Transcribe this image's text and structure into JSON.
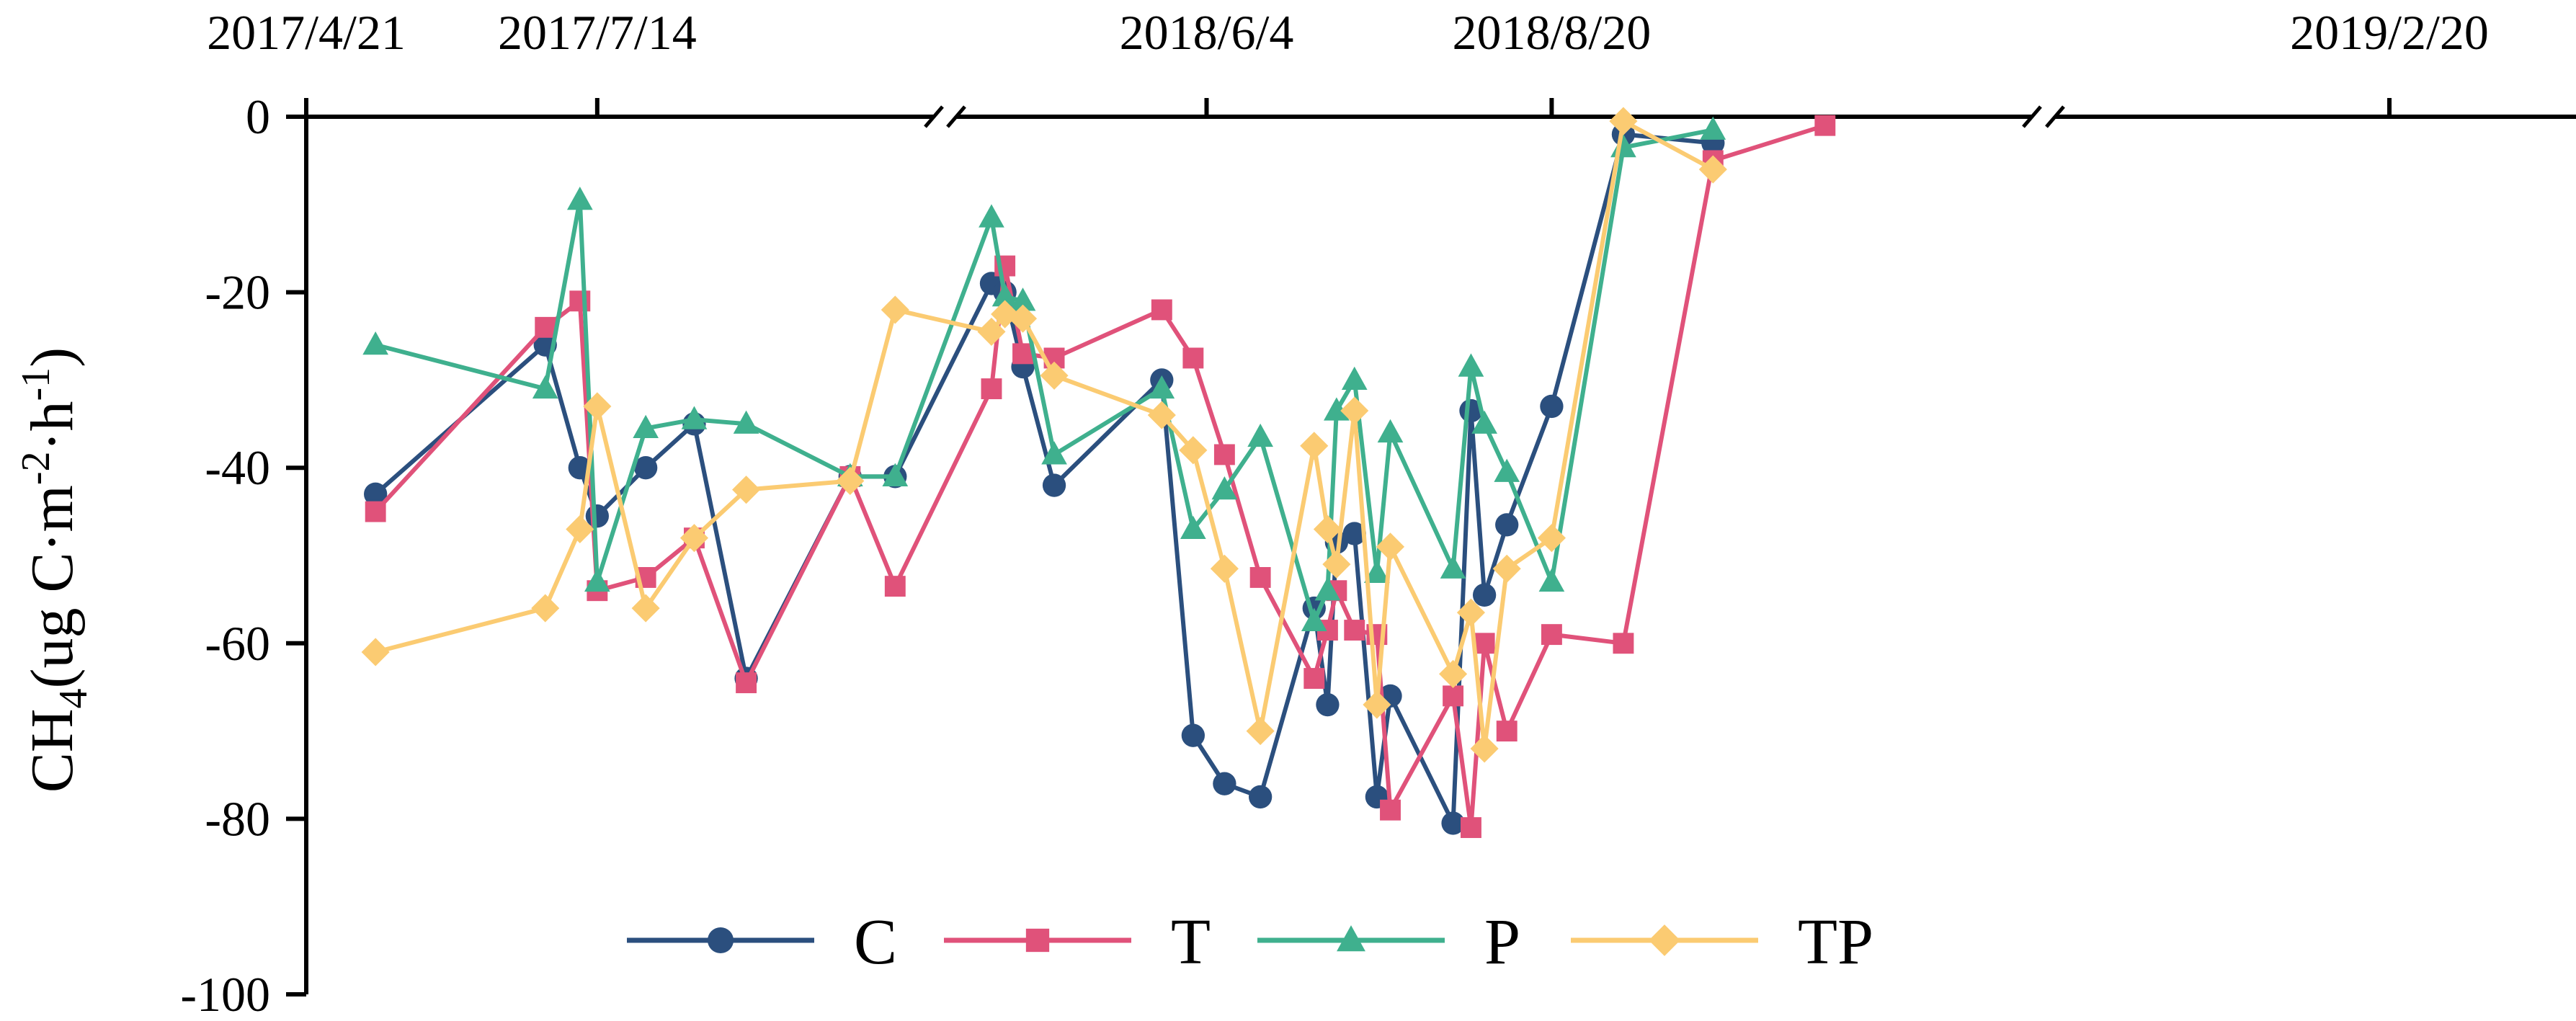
{
  "chart_data": {
    "type": "line",
    "ylabel": {
      "main": "CH",
      "sub": "4",
      "rest": "(ug C·m",
      "sup1": "-2",
      "mid": "·h",
      "sup2": "-1",
      "close": ")"
    },
    "ylim": [
      -100,
      0
    ],
    "yticks": [
      0,
      -20,
      -40,
      -60,
      -80,
      -100
    ],
    "ytick_labels": [
      "0",
      "-20",
      "-40",
      "-60",
      "-80",
      "-100"
    ],
    "x_axis_position": "top",
    "x_axis_breaks": 2,
    "xticks": [
      "2017/4/21",
      "2017/7/14",
      "2018/6/4",
      "2018/8/20",
      "2019/2/20"
    ],
    "x": [
      "2017/5/11",
      "2017/6/29",
      "2017/7/9",
      "2017/7/14",
      "2017/7/28",
      "2017/8/11",
      "2017/8/26",
      "2017/9/25",
      "2017/10/8",
      "2018/4/17",
      "2018/4/20",
      "2018/4/24",
      "2018/5/1",
      "2018/5/25",
      "2018/6/1",
      "2018/6/8",
      "2018/6/16",
      "2018/6/28",
      "2018/7/1",
      "2018/7/3",
      "2018/7/7",
      "2018/7/12",
      "2018/7/15",
      "2018/7/29",
      "2018/8/2",
      "2018/8/5",
      "2018/8/10",
      "2018/8/20",
      "2018/9/5",
      "2018/9/25",
      "2018/10/20",
      "2018/11/15",
      "2019/1/25",
      "2019/2/20"
    ],
    "series": [
      {
        "name": "C",
        "color": "#2b4f7e",
        "marker": "circle",
        "values": [
          -43,
          -26,
          -40,
          -45.5,
          -40,
          -35,
          -64,
          -41,
          -41,
          -19,
          -20,
          -28.5,
          -42,
          -30,
          -70.5,
          -76,
          -77.5,
          -56,
          -67,
          -48.5,
          -47.5,
          -77.5,
          -66,
          -80.5,
          -33.5,
          -54.5,
          -46.5,
          -33,
          -2,
          -3,
          null,
          null,
          null,
          null
        ]
      },
      {
        "name": "T",
        "color": "#e0527a",
        "marker": "square",
        "values": [
          -45,
          -24,
          -21,
          -54,
          -52.5,
          -48,
          -64.5,
          -41,
          -53.5,
          -31,
          -17,
          -27,
          -27.5,
          -22,
          -27.5,
          -38.5,
          -52.5,
          -64,
          -58.5,
          -54,
          -58.5,
          -59,
          -79,
          -66,
          -81,
          -60,
          -70,
          -59,
          -60,
          -5,
          -1,
          null,
          null,
          null
        ]
      },
      {
        "name": "P",
        "color": "#3fb08e",
        "marker": "triangle",
        "values": [
          -26,
          -31,
          -9.5,
          -53,
          -35.5,
          -34.5,
          -35,
          -41,
          -41,
          -11.5,
          -20.5,
          -21,
          -38.5,
          -31,
          -47,
          -42.5,
          -36.5,
          -57.5,
          -54,
          -33.5,
          -30,
          -52,
          -36,
          -51.5,
          -28.5,
          -35,
          -40.5,
          -53,
          -3.5,
          -1.5,
          null,
          null,
          null,
          null
        ]
      },
      {
        "name": "TP",
        "color": "#fbcb72",
        "marker": "diamond",
        "values": [
          -61,
          -56,
          -47,
          -33,
          -56,
          -48,
          -42.5,
          -41.5,
          -22,
          -24.5,
          -22.5,
          -23,
          -29.5,
          -34,
          -38,
          -51.5,
          -70,
          -37.5,
          -47,
          -51,
          -33.5,
          -67,
          -49,
          -63.5,
          -56.5,
          -72,
          -51.5,
          -48,
          -0.5,
          -6,
          null,
          null,
          null,
          null
        ]
      }
    ],
    "legend": {
      "placement": "bottom-center",
      "entries": [
        "C",
        "T",
        "P",
        "TP"
      ]
    }
  }
}
